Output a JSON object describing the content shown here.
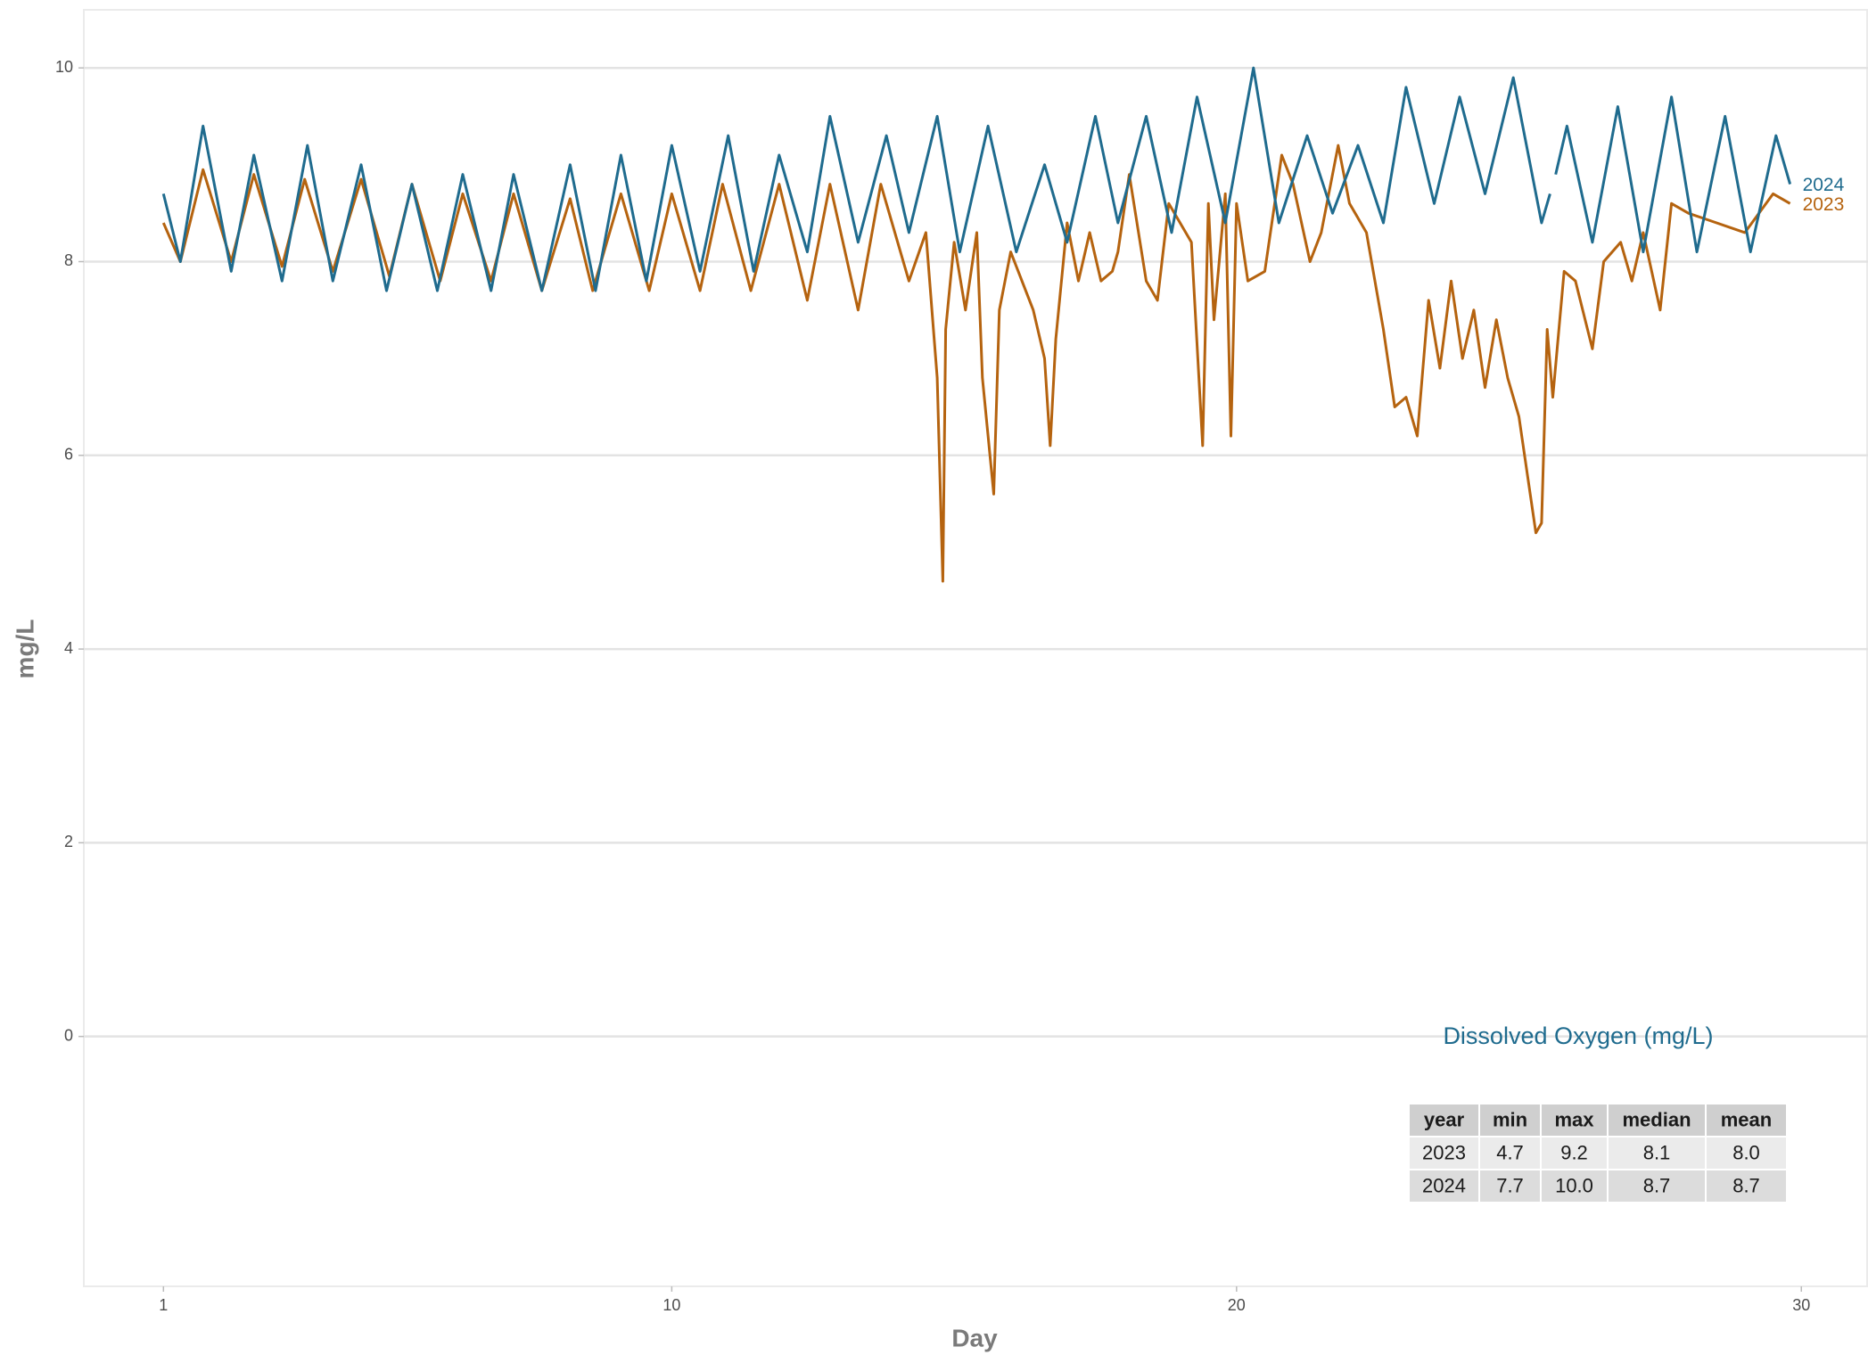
{
  "chart_data": {
    "type": "line",
    "x_label": "Day",
    "y_label": "mg/L",
    "xlim": [
      -0.41,
      31.18
    ],
    "xticks": [
      1,
      10,
      20,
      30
    ],
    "ylim": [
      -2.58,
      10.6
    ],
    "yticks": [
      0,
      2,
      4,
      6,
      8,
      10
    ],
    "grid": true,
    "series": [
      {
        "name": "2024",
        "color": "#1f6b8e",
        "x": [
          1.0,
          1.3,
          1.7,
          2.2,
          2.6,
          3.1,
          3.55,
          4.0,
          4.5,
          4.95,
          5.4,
          5.85,
          6.3,
          6.8,
          7.2,
          7.7,
          8.2,
          8.65,
          9.1,
          9.55,
          10.0,
          10.5,
          11.0,
          11.45,
          11.9,
          12.4,
          12.8,
          13.3,
          13.8,
          14.2,
          14.7,
          15.1,
          15.6,
          16.1,
          16.6,
          17.0,
          17.5,
          17.9,
          18.4,
          18.85,
          19.3,
          19.8,
          20.3,
          20.75,
          21.25,
          21.7,
          22.15,
          22.6,
          23.0,
          23.5,
          23.95,
          24.4,
          24.9,
          25.4,
          25.55,
          25.6,
          25.65,
          25.85,
          26.3,
          26.75,
          27.2,
          27.7,
          28.15,
          28.65,
          29.1,
          29.55,
          29.8
        ],
        "values": [
          8.7,
          8.0,
          9.4,
          7.9,
          9.1,
          7.8,
          9.2,
          7.8,
          9.0,
          7.7,
          8.8,
          7.7,
          8.9,
          7.7,
          8.9,
          7.7,
          9.0,
          7.7,
          9.1,
          7.8,
          9.2,
          7.9,
          9.3,
          7.9,
          9.1,
          8.1,
          9.5,
          8.2,
          9.3,
          8.3,
          9.5,
          8.1,
          9.4,
          8.1,
          9.0,
          8.2,
          9.5,
          8.4,
          9.5,
          8.3,
          9.7,
          8.4,
          10.0,
          8.4,
          9.3,
          8.5,
          9.2,
          8.4,
          9.8,
          8.6,
          9.7,
          8.7,
          9.9,
          8.4,
          8.7,
          null,
          8.9,
          9.4,
          8.2,
          9.6,
          8.1,
          9.7,
          8.1,
          9.5,
          8.1,
          9.3,
          8.8
        ]
      },
      {
        "name": "2023",
        "color": "#b5630f",
        "x": [
          1.0,
          1.3,
          1.7,
          2.2,
          2.6,
          3.1,
          3.5,
          4.0,
          4.5,
          5.0,
          5.4,
          5.9,
          6.3,
          6.8,
          7.2,
          7.7,
          8.2,
          8.6,
          9.1,
          9.6,
          10.0,
          10.5,
          10.9,
          11.4,
          11.9,
          12.4,
          12.8,
          13.3,
          13.7,
          14.2,
          14.5,
          14.7,
          14.8,
          14.85,
          15.0,
          15.2,
          15.4,
          15.5,
          15.7,
          15.8,
          16.0,
          16.4,
          16.6,
          16.7,
          16.8,
          17.0,
          17.2,
          17.4,
          17.6,
          17.8,
          17.9,
          18.1,
          18.4,
          18.6,
          18.8,
          19.0,
          19.2,
          19.4,
          19.5,
          19.6,
          19.8,
          19.9,
          20.0,
          20.2,
          20.5,
          20.8,
          21.0,
          21.3,
          21.5,
          21.8,
          22.0,
          22.3,
          22.6,
          22.8,
          23.0,
          23.2,
          23.4,
          23.6,
          23.8,
          24.0,
          24.2,
          24.4,
          24.6,
          24.8,
          25.0,
          25.3,
          25.4,
          25.5,
          25.6,
          25.8,
          26.0,
          26.3,
          26.5,
          26.8,
          27.0,
          27.2,
          27.5,
          27.7,
          28.0,
          28.5,
          29.0,
          29.5,
          29.8
        ],
        "values": [
          8.4,
          8.0,
          8.95,
          8.0,
          8.9,
          7.95,
          8.85,
          7.9,
          8.85,
          7.85,
          8.8,
          7.8,
          8.7,
          7.8,
          8.7,
          7.7,
          8.65,
          7.7,
          8.7,
          7.7,
          8.7,
          7.7,
          8.8,
          7.7,
          8.8,
          7.6,
          8.8,
          7.5,
          8.8,
          7.8,
          8.3,
          6.8,
          4.7,
          7.3,
          8.2,
          7.5,
          8.3,
          6.8,
          5.6,
          7.5,
          8.1,
          7.5,
          7.0,
          6.1,
          7.2,
          8.4,
          7.8,
          8.3,
          7.8,
          7.9,
          8.1,
          8.9,
          7.8,
          7.6,
          8.6,
          8.4,
          8.2,
          6.1,
          8.6,
          7.4,
          8.7,
          6.2,
          8.6,
          7.8,
          7.9,
          9.1,
          8.8,
          8.0,
          8.3,
          9.2,
          8.6,
          8.3,
          7.3,
          6.5,
          6.6,
          6.2,
          7.6,
          6.9,
          7.8,
          7.0,
          7.5,
          6.7,
          7.4,
          6.8,
          6.4,
          5.2,
          5.3,
          7.3,
          6.6,
          7.9,
          7.8,
          7.1,
          8.0,
          8.2,
          7.8,
          8.3,
          7.5,
          8.6,
          8.5,
          8.4,
          8.3,
          8.7,
          8.6
        ]
      }
    ],
    "stats_table": {
      "title": "Dissolved Oxygen (mg/L)",
      "columns": [
        "year",
        "min",
        "max",
        "median",
        "mean"
      ],
      "rows": [
        [
          "2023",
          "4.7",
          "9.2",
          "8.1",
          "8.0"
        ],
        [
          "2024",
          "7.7",
          "10.0",
          "8.7",
          "8.7"
        ]
      ]
    }
  }
}
